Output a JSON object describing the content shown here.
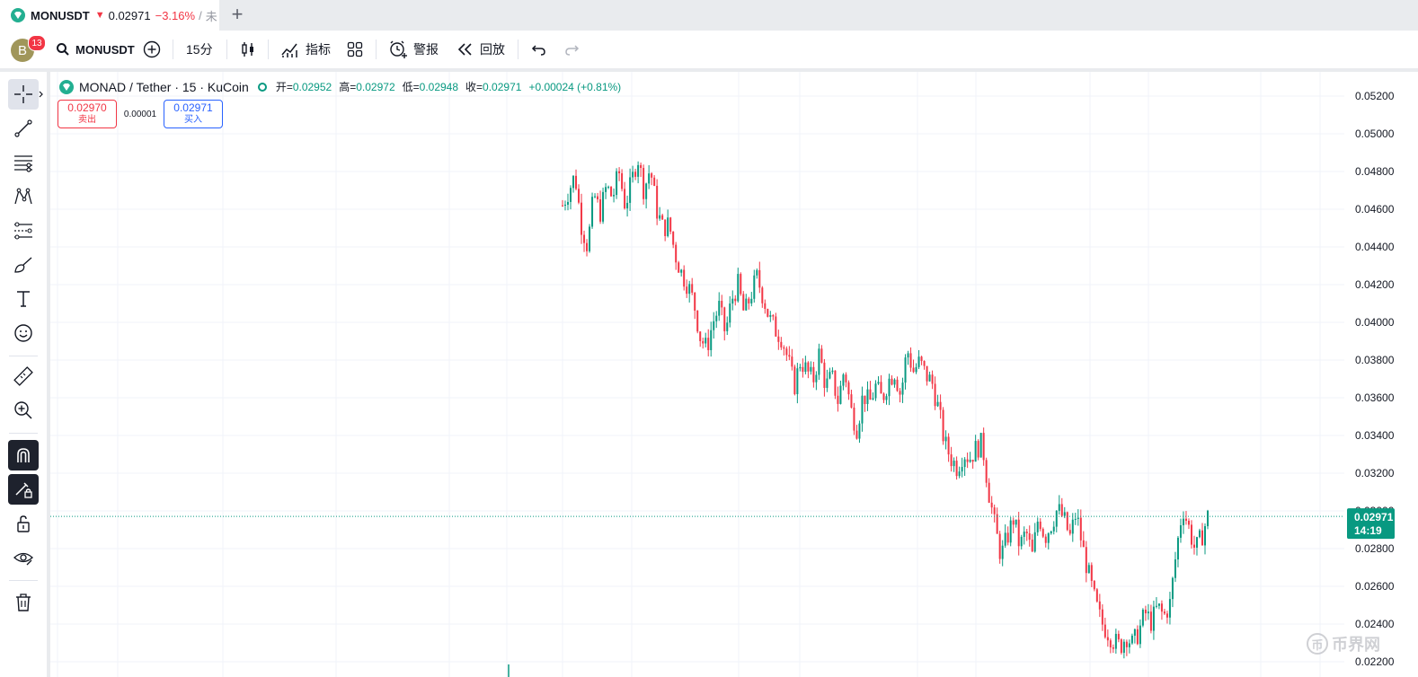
{
  "tab": {
    "symbol": "MONUSDT",
    "arrow": "▼",
    "price": "0.02971",
    "change": "−3.16%",
    "sep": "/",
    "rest": "未",
    "new_tab": "+"
  },
  "toolbar": {
    "avatar_letter": "B",
    "notif_count": "13",
    "search_symbol": "MONUSDT",
    "interval": "15分",
    "indicators": "指标",
    "alerts": "警报",
    "replay": "回放"
  },
  "legend": {
    "title": "MONAD / Tether · 15 · KuCoin",
    "open_label": "开=",
    "open": "0.02952",
    "high_label": "高=",
    "high": "0.02972",
    "low_label": "低=",
    "low": "0.02948",
    "close_label": "收=",
    "close": "0.02971",
    "change": "+0.00024 (+0.81%)"
  },
  "trade": {
    "sell_price": "0.02970",
    "sell_label": "卖出",
    "spread": "0.00001",
    "buy_price": "0.02971",
    "buy_label": "买入"
  },
  "price_tag": {
    "price": "0.02971",
    "countdown": "14:19"
  },
  "watermark": {
    "symbol": "币",
    "text": "币界网"
  },
  "colors": {
    "up": "#089981",
    "down": "#f23645",
    "accent": "#2962ff"
  },
  "chart_data": {
    "type": "candlestick",
    "y_ticks": [
      "0.05200",
      "0.05000",
      "0.04800",
      "0.04600",
      "0.04400",
      "0.04200",
      "0.04000",
      "0.03800",
      "0.03600",
      "0.03400",
      "0.03200",
      "0.03000",
      "0.02800",
      "0.02600",
      "0.02400",
      "0.02200"
    ],
    "ylim": [
      0.0218,
      0.0533
    ],
    "current_price": 0.02971,
    "grid": true,
    "series_close": [
      0.0462,
      0.047,
      0.0478,
      0.0452,
      0.044,
      0.0468,
      0.0458,
      0.0472,
      0.0466,
      0.048,
      0.0462,
      0.0474,
      0.0488,
      0.047,
      0.0482,
      0.046,
      0.045,
      0.0452,
      0.0436,
      0.0426,
      0.042,
      0.041,
      0.0392,
      0.0386,
      0.04,
      0.0408,
      0.0394,
      0.0412,
      0.042,
      0.0404,
      0.0414,
      0.0424,
      0.0414,
      0.0402,
      0.0396,
      0.0392,
      0.038,
      0.0366,
      0.038,
      0.0374,
      0.0369,
      0.0384,
      0.0366,
      0.0371,
      0.0358,
      0.0376,
      0.0354,
      0.0344,
      0.0362,
      0.0357,
      0.0366,
      0.0359,
      0.0369,
      0.0374,
      0.0361,
      0.0386,
      0.0374,
      0.0379,
      0.0372,
      0.0368,
      0.0354,
      0.0336,
      0.0328,
      0.0323,
      0.0331,
      0.0328,
      0.0333,
      0.0336,
      0.0311,
      0.0292,
      0.0276,
      0.0286,
      0.0296,
      0.0281,
      0.0289,
      0.0276,
      0.0298,
      0.0286,
      0.0293,
      0.0301,
      0.0296,
      0.0286,
      0.0299,
      0.0281,
      0.0266,
      0.0252,
      0.0241,
      0.0236,
      0.0231,
      0.0228,
      0.0234,
      0.0229,
      0.0236,
      0.0246,
      0.0241,
      0.0249,
      0.0244,
      0.0251,
      0.0279,
      0.0302,
      0.0291,
      0.0279,
      0.0286,
      0.0297
    ]
  }
}
